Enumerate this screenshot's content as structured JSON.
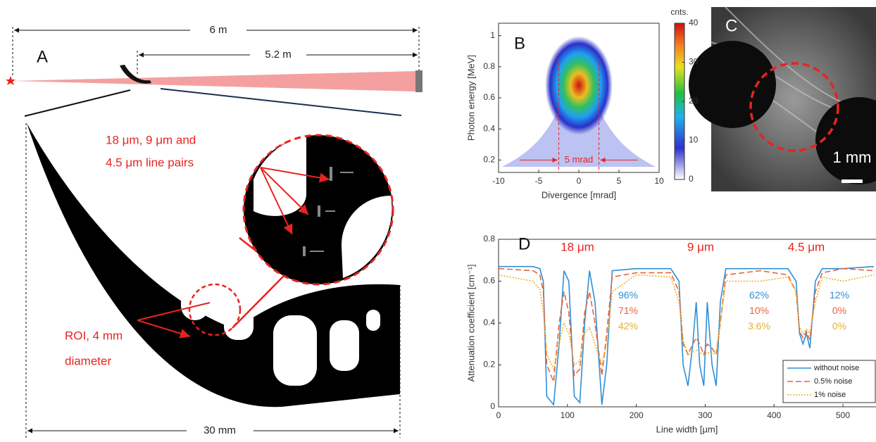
{
  "panel_a": {
    "label": "A",
    "distance_total": "6 m",
    "distance_part": "5.2 m",
    "callout_line1": "18 μm, 9 μm and",
    "callout_line2": "4.5 μm line pairs",
    "roi_line1": "ROI, 4 mm",
    "roi_line2": "diameter",
    "width": "30 mm"
  },
  "panel_c": {
    "label": "C",
    "scale_bar": "1 mm"
  },
  "chart_data": [
    {
      "type": "heatmap",
      "label": "B",
      "x_label": "Divergence [mrad]",
      "y_label": "Photon energy [MeV]",
      "xlim": [
        -10,
        10
      ],
      "xticks": [
        -10,
        -5,
        0,
        5,
        10
      ],
      "ylim": [
        0.12,
        1.08
      ],
      "yticks": [
        0.2,
        0.4,
        0.6,
        0.8,
        1
      ],
      "colorbar_title": "cnts.",
      "colorbar_lim": [
        0,
        40
      ],
      "colorbar_ticks": [
        0,
        10,
        20,
        30,
        40
      ],
      "marker_lines": [
        -2.5,
        2.5
      ],
      "marker_label": "5 mrad"
    },
    {
      "type": "line",
      "label": "D",
      "x_label": "Line width [μm]",
      "y_label": "Attenuation coefficient [cm⁻¹]",
      "xlim": [
        0,
        547
      ],
      "xticks": [
        0,
        100,
        200,
        300,
        400,
        500
      ],
      "ylim": [
        0,
        0.8
      ],
      "yticks": [
        0,
        0.2,
        0.4,
        0.6,
        0.8
      ],
      "legend": "lower right",
      "group_labels": [
        "18 μm",
        "9 μm",
        "4.5 μm"
      ],
      "contrast_labels": [
        [
          "96%",
          "71%",
          "42%"
        ],
        [
          "62%",
          "10%",
          "3.6%"
        ],
        [
          "12%",
          "0%",
          "0%"
        ]
      ],
      "x": [
        0,
        50,
        60,
        65,
        70,
        80,
        88,
        95,
        102,
        110,
        118,
        125,
        132,
        140,
        150,
        157,
        165,
        200,
        250,
        262,
        268,
        275,
        282,
        287,
        292,
        298,
        303,
        310,
        316,
        322,
        330,
        380,
        420,
        432,
        437,
        442,
        447,
        452,
        460,
        470,
        500,
        545
      ],
      "series": [
        {
          "name": "without noise",
          "color": "#2f8fd6",
          "dash": "",
          "values": [
            0.67,
            0.67,
            0.66,
            0.6,
            0.05,
            0.01,
            0.3,
            0.65,
            0.6,
            0.05,
            0.02,
            0.4,
            0.65,
            0.5,
            0.01,
            0.2,
            0.65,
            0.66,
            0.66,
            0.6,
            0.2,
            0.1,
            0.3,
            0.5,
            0.2,
            0.1,
            0.5,
            0.2,
            0.1,
            0.5,
            0.66,
            0.66,
            0.66,
            0.6,
            0.35,
            0.3,
            0.35,
            0.28,
            0.6,
            0.66,
            0.66,
            0.67
          ]
        },
        {
          "name": "0.5% noise",
          "color": "#e8643c",
          "dash": "8 4",
          "values": [
            0.66,
            0.65,
            0.63,
            0.55,
            0.2,
            0.12,
            0.4,
            0.55,
            0.45,
            0.15,
            0.18,
            0.45,
            0.55,
            0.4,
            0.15,
            0.35,
            0.62,
            0.64,
            0.64,
            0.55,
            0.3,
            0.25,
            0.3,
            0.33,
            0.3,
            0.25,
            0.3,
            0.28,
            0.25,
            0.4,
            0.63,
            0.65,
            0.63,
            0.55,
            0.36,
            0.33,
            0.36,
            0.32,
            0.55,
            0.64,
            0.66,
            0.65
          ]
        },
        {
          "name": "1% noise",
          "color": "#eab020",
          "dash": "2 2",
          "values": [
            0.63,
            0.6,
            0.56,
            0.45,
            0.25,
            0.18,
            0.3,
            0.4,
            0.35,
            0.2,
            0.22,
            0.35,
            0.38,
            0.3,
            0.2,
            0.3,
            0.55,
            0.63,
            0.62,
            0.5,
            0.32,
            0.25,
            0.26,
            0.27,
            0.26,
            0.25,
            0.26,
            0.25,
            0.26,
            0.4,
            0.6,
            0.6,
            0.62,
            0.55,
            0.38,
            0.35,
            0.37,
            0.35,
            0.5,
            0.62,
            0.6,
            0.63
          ]
        }
      ]
    }
  ]
}
